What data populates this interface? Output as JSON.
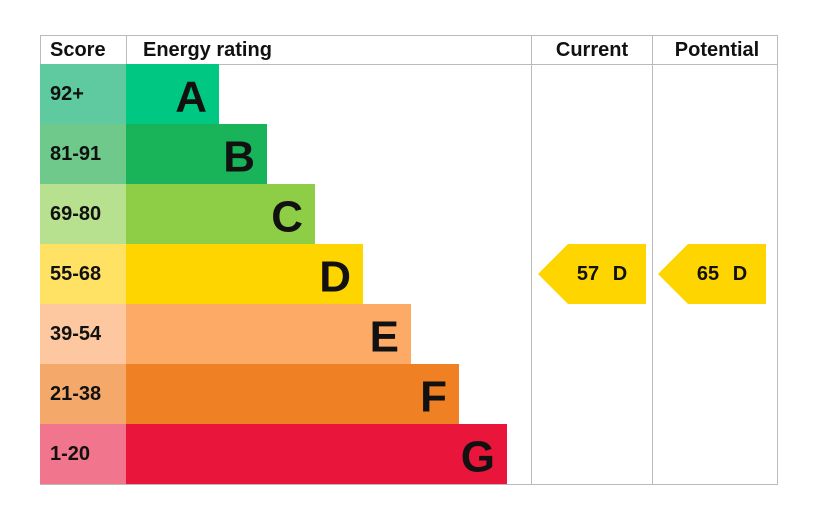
{
  "chart_data": {
    "type": "epc",
    "headers": {
      "score": "Score",
      "rating": "Energy rating",
      "current": "Current",
      "potential": "Potential"
    },
    "bands": [
      {
        "score": "92+",
        "letter": "A",
        "color": "#00c781",
        "score_color": "#5fcaa0"
      },
      {
        "score": "81-91",
        "letter": "B",
        "color": "#19b459",
        "score_color": "#6fc98b"
      },
      {
        "score": "69-80",
        "letter": "C",
        "color": "#8dce46",
        "score_color": "#b7e08f"
      },
      {
        "score": "55-68",
        "letter": "D",
        "color": "#ffd500",
        "score_color": "#ffe264"
      },
      {
        "score": "39-54",
        "letter": "E",
        "color": "#fcaa65",
        "score_color": "#fdc8a0"
      },
      {
        "score": "21-38",
        "letter": "F",
        "color": "#ef8023",
        "score_color": "#f4a96a"
      },
      {
        "score": "1-20",
        "letter": "G",
        "color": "#e9153b",
        "score_color": "#f1758c"
      }
    ],
    "current": {
      "value": 57,
      "rating": "D"
    },
    "potential": {
      "value": 65,
      "rating": "D"
    }
  }
}
